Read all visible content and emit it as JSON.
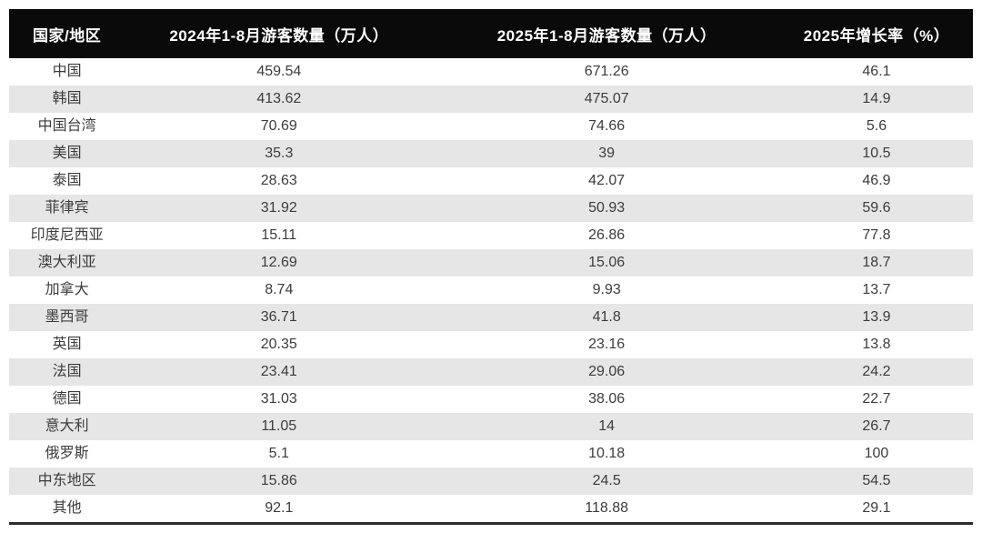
{
  "table": {
    "headers": [
      "国家/地区",
      "2024年1-8月游客数量（万人）",
      "2025年1-8月游客数量（万人）",
      "2025年增长率（%）"
    ],
    "rows": [
      {
        "region": "中国",
        "y2024": "459.54",
        "y2025": "671.26",
        "growth": "46.1"
      },
      {
        "region": "韩国",
        "y2024": "413.62",
        "y2025": "475.07",
        "growth": "14.9"
      },
      {
        "region": "中国台湾",
        "y2024": "70.69",
        "y2025": "74.66",
        "growth": "5.6"
      },
      {
        "region": "美国",
        "y2024": "35.3",
        "y2025": "39",
        "growth": "10.5"
      },
      {
        "region": "泰国",
        "y2024": "28.63",
        "y2025": "42.07",
        "growth": "46.9"
      },
      {
        "region": "菲律宾",
        "y2024": "31.92",
        "y2025": "50.93",
        "growth": "59.6"
      },
      {
        "region": "印度尼西亚",
        "y2024": "15.11",
        "y2025": "26.86",
        "growth": "77.8"
      },
      {
        "region": "澳大利亚",
        "y2024": "12.69",
        "y2025": "15.06",
        "growth": "18.7"
      },
      {
        "region": "加拿大",
        "y2024": "8.74",
        "y2025": "9.93",
        "growth": "13.7"
      },
      {
        "region": "墨西哥",
        "y2024": "36.71",
        "y2025": "41.8",
        "growth": "13.9"
      },
      {
        "region": "英国",
        "y2024": "20.35",
        "y2025": "23.16",
        "growth": "13.8"
      },
      {
        "region": "法国",
        "y2024": "23.41",
        "y2025": "29.06",
        "growth": "24.2"
      },
      {
        "region": "德国",
        "y2024": "31.03",
        "y2025": "38.06",
        "growth": "22.7"
      },
      {
        "region": "意大利",
        "y2024": "11.05",
        "y2025": "14",
        "growth": "26.7"
      },
      {
        "region": "俄罗斯",
        "y2024": "5.1",
        "y2025": "10.18",
        "growth": "100"
      },
      {
        "region": "中东地区",
        "y2024": "15.86",
        "y2025": "24.5",
        "growth": "54.5"
      },
      {
        "region": "其他",
        "y2024": "92.1",
        "y2025": "118.88",
        "growth": "29.1"
      }
    ]
  },
  "colors": {
    "header_bg": "#0a0a0a",
    "header_text": "#ffffff",
    "row_alt_bg": "#e6e6e6",
    "row_bg": "#ffffff",
    "body_text": "#3c3c3c",
    "bottom_rule": "#2b2b2b"
  },
  "chart_data": {
    "type": "table",
    "title": "",
    "columns": [
      "国家/地区",
      "2024年1-8月游客数量（万人）",
      "2025年1-8月游客数量（万人）",
      "2025年增长率（%）"
    ],
    "categories": [
      "中国",
      "韩国",
      "中国台湾",
      "美国",
      "泰国",
      "菲律宾",
      "印度尼西亚",
      "澳大利亚",
      "加拿大",
      "墨西哥",
      "英国",
      "法国",
      "德国",
      "意大利",
      "俄罗斯",
      "中东地区",
      "其他"
    ],
    "series": [
      {
        "name": "2024年1-8月游客数量（万人）",
        "values": [
          459.54,
          413.62,
          70.69,
          35.3,
          28.63,
          31.92,
          15.11,
          12.69,
          8.74,
          36.71,
          20.35,
          23.41,
          31.03,
          11.05,
          5.1,
          15.86,
          92.1
        ]
      },
      {
        "name": "2025年1-8月游客数量（万人）",
        "values": [
          671.26,
          475.07,
          74.66,
          39,
          42.07,
          50.93,
          26.86,
          15.06,
          9.93,
          41.8,
          23.16,
          29.06,
          38.06,
          14,
          10.18,
          24.5,
          118.88
        ]
      },
      {
        "name": "2025年增长率（%）",
        "values": [
          46.1,
          14.9,
          5.6,
          10.5,
          46.9,
          59.6,
          77.8,
          18.7,
          13.7,
          13.9,
          13.8,
          24.2,
          22.7,
          26.7,
          100,
          54.5,
          29.1
        ]
      }
    ]
  }
}
